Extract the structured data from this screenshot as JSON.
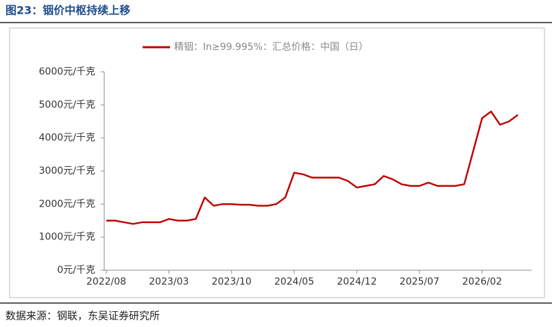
{
  "chart_data": {
    "type": "line",
    "title": "图23：铟价中枢持续上移",
    "source": "数据来源：钢联，东吴证券研究所",
    "categories": [
      "2022/08",
      null,
      null,
      null,
      null,
      null,
      null,
      "2023/03",
      null,
      null,
      null,
      null,
      null,
      null,
      "2023/10",
      null,
      null,
      null,
      null,
      null,
      null,
      "2024/05",
      null,
      null,
      null,
      null,
      null,
      null,
      "2024/12",
      null,
      null,
      null,
      null,
      null,
      null,
      "2025/07",
      null,
      null,
      null,
      null,
      null,
      null,
      "2026/02",
      null,
      null,
      null,
      null
    ],
    "series": [
      {
        "name": "精铟：In≥99.995%：汇总价格：中国（日）",
        "color": "#c00000",
        "values": [
          1500,
          1500,
          1450,
          1400,
          1450,
          1450,
          1450,
          1550,
          1500,
          1500,
          1550,
          2200,
          1950,
          2000,
          2000,
          1980,
          1980,
          1950,
          1950,
          2000,
          2200,
          2950,
          2900,
          2800,
          2800,
          2800,
          2800,
          2700,
          2500,
          2550,
          2600,
          2850,
          2750,
          2600,
          2550,
          2550,
          2650,
          2550,
          2550,
          2550,
          2600,
          3600,
          4600,
          4800,
          4400,
          4500,
          4700
        ]
      }
    ],
    "ylim": [
      0,
      6000
    ],
    "yticks": [
      {
        "value": 0,
        "label": "0元/千克"
      },
      {
        "value": 1000,
        "label": "1000元/千克"
      },
      {
        "value": 2000,
        "label": "2000元/千克"
      },
      {
        "value": 3000,
        "label": "3000元/千克"
      },
      {
        "value": 4000,
        "label": "4000元/千克"
      },
      {
        "value": 5000,
        "label": "5000元/千克"
      },
      {
        "value": 6000,
        "label": "6000元/千克"
      }
    ],
    "legend": "top"
  }
}
